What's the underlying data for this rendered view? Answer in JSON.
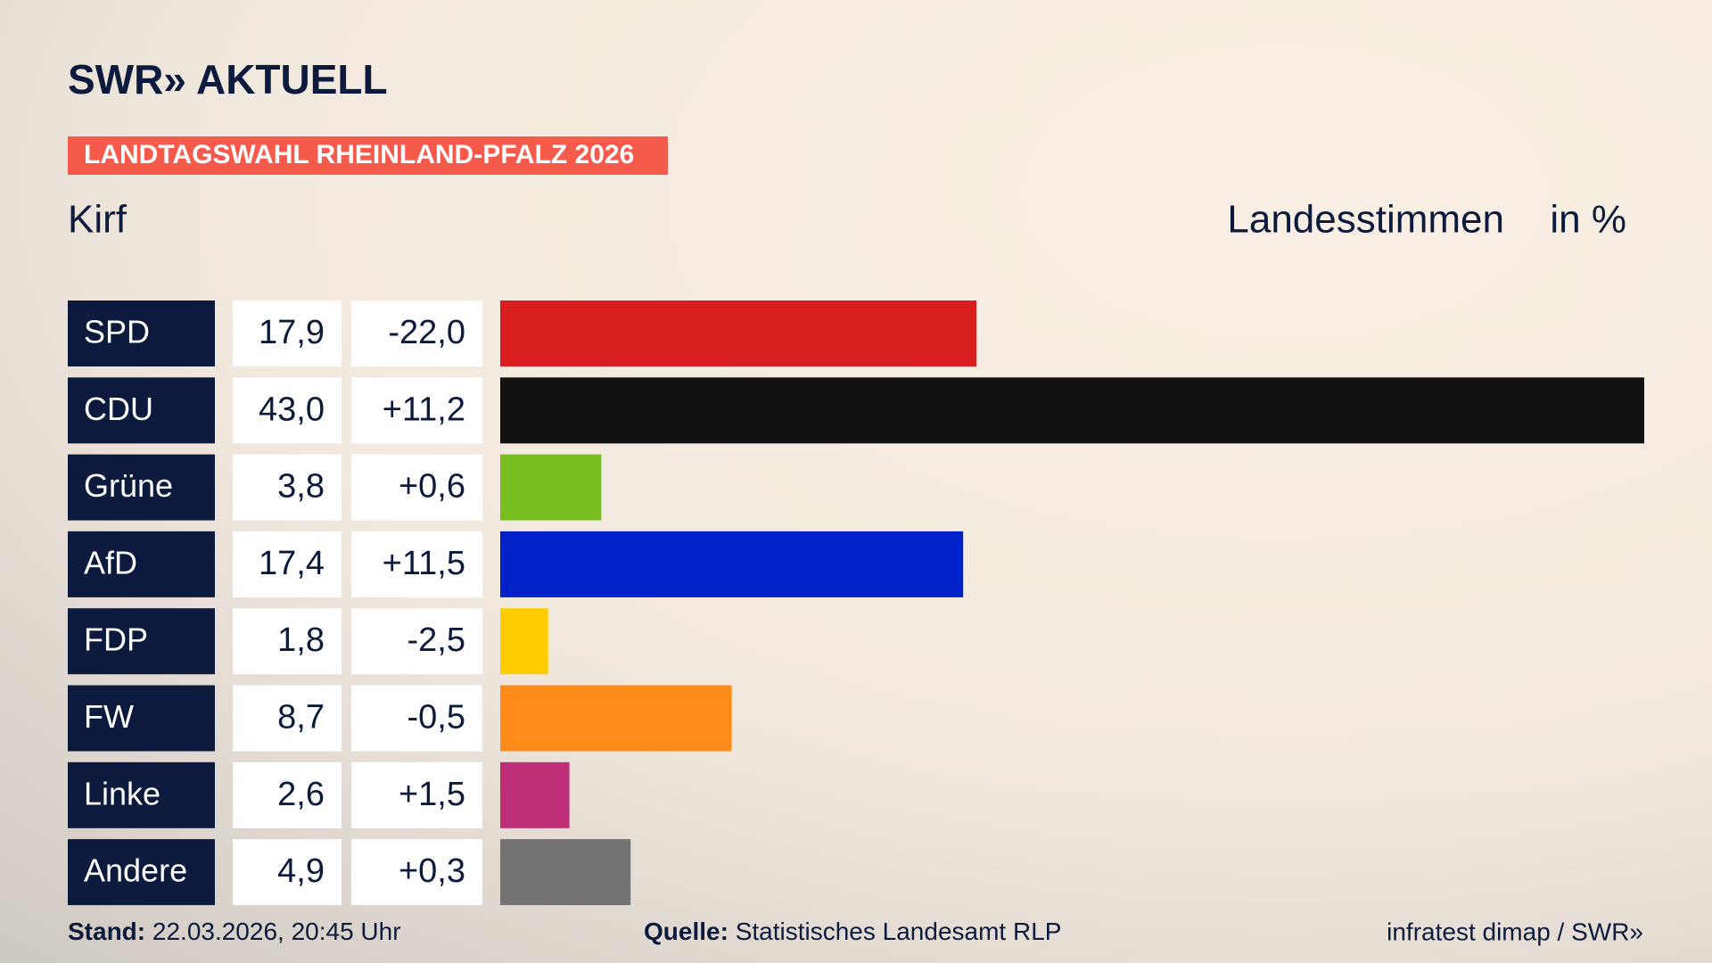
{
  "header": {
    "logo": "SWR» AKTUELL",
    "banner": "LANDTAGSWAHL RHEINLAND-PFALZ 2026"
  },
  "chart_data": {
    "type": "bar",
    "orientation": "horizontal",
    "subtitle": "Kirf",
    "value_header": "Landesstimmen",
    "unit": "in %",
    "categories": [
      "SPD",
      "CDU",
      "Grüne",
      "AfD",
      "FDP",
      "FW",
      "Linke",
      "Andere"
    ],
    "values": [
      17.9,
      43.0,
      3.8,
      17.4,
      1.8,
      8.7,
      2.6,
      4.9
    ],
    "value_labels": [
      "17,9",
      "43,0",
      "3,8",
      "17,4",
      "1,8",
      "8,7",
      "2,6",
      "4,9"
    ],
    "changes": [
      -22.0,
      11.2,
      0.6,
      11.5,
      -2.5,
      -0.5,
      1.5,
      0.3
    ],
    "change_labels": [
      "-22,0",
      "+11,2",
      "+0,6",
      "+11,5",
      "-2,5",
      "-0,5",
      "+1,5",
      "+0,3"
    ],
    "colors": [
      "#d81e1e",
      "#111111",
      "#78be20",
      "#0021c8",
      "#ffcc00",
      "#ff8c1a",
      "#be2f78",
      "#737373"
    ]
  },
  "footer": {
    "stand_label": "Stand:",
    "stand": "22.03.2026, 20:45 Uhr",
    "source_label": "Quelle:",
    "source": "Statistisches Landesamt RLP",
    "credit": "infratest dimap / SWR»"
  }
}
